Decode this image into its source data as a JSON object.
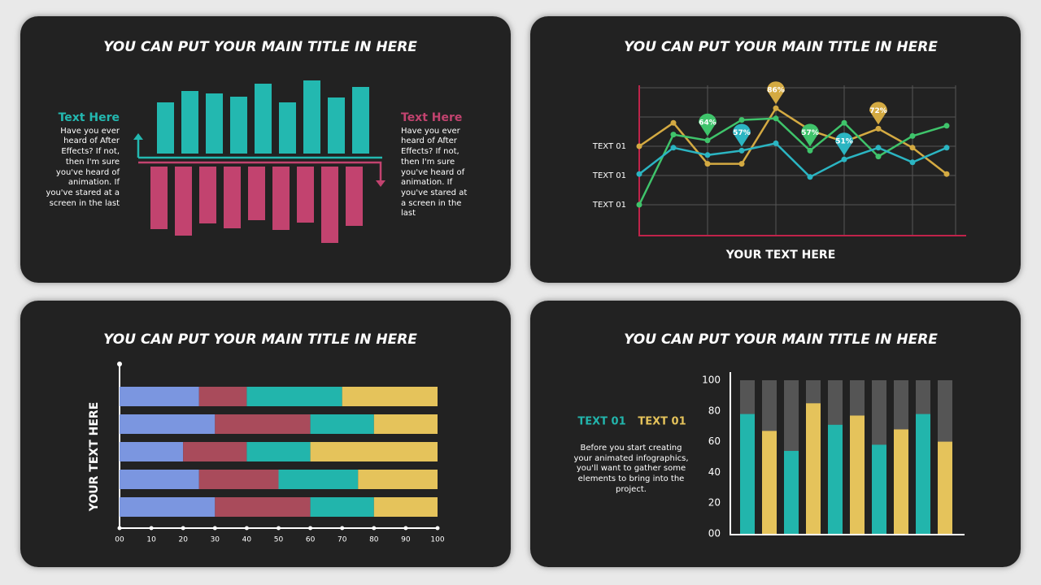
{
  "chart_data": [
    {
      "type": "diverging-bar",
      "title": "YOU CAN PUT YOUR MAIN TITLE IN HERE",
      "ylim": [
        0,
        100
      ],
      "series": [
        {
          "color": "#23b8b0",
          "values": [
            63,
            77,
            74,
            70,
            86,
            63,
            90,
            69,
            82
          ]
        },
        {
          "color": "#c2436f",
          "values": [
            77,
            85,
            70,
            76,
            66,
            78,
            69,
            94,
            73
          ]
        }
      ],
      "annotations": [
        {
          "title": "Text Here",
          "text": "Have you ever heard of After Effects? If not, then I'm sure you've heard of animation. If you've stared at a screen in the last",
          "color": "#23b8b0"
        },
        {
          "title": "Text Here",
          "text": "Have you ever heard of After Effects? If not, then I'm sure you've heard of animation. If you've stared at a screen in the last",
          "color": "#c2436f"
        }
      ]
    },
    {
      "type": "line",
      "title": "YOU CAN PUT YOUR MAIN TITLE IN HERE",
      "xlabel": "YOUR TEXT HERE",
      "categories": [
        null,
        null,
        null,
        null,
        null,
        null,
        null,
        null,
        null,
        null
      ],
      "ylim": [
        0,
        100
      ],
      "yticks": [
        {
          "value": 20,
          "label": "TEXT 01"
        },
        {
          "value": 40,
          "label": "TEXT 01"
        },
        {
          "value": 60,
          "label": "TEXT 01"
        },
        {
          "value": 80,
          "label": null
        },
        {
          "value": 100,
          "label": null
        }
      ],
      "grid": true,
      "series": [
        {
          "color": "#d4aa42",
          "values": [
            60,
            76,
            48,
            48,
            86,
            71,
            63,
            72,
            59,
            41
          ],
          "value_labels": [
            null,
            null,
            null,
            null,
            "86%",
            null,
            null,
            "72%",
            null,
            null
          ]
        },
        {
          "color": "#3fc46b",
          "values": [
            20,
            68,
            64,
            78,
            79,
            57,
            76,
            53,
            67,
            74
          ],
          "value_labels": [
            null,
            null,
            "64%",
            null,
            null,
            "57%",
            null,
            null,
            null,
            null
          ]
        },
        {
          "color": "#2bb5c2",
          "values": [
            41,
            59,
            54,
            57,
            62,
            39,
            51,
            59,
            49,
            59
          ],
          "value_labels": [
            null,
            null,
            null,
            "57%",
            null,
            null,
            "51%",
            null,
            null,
            null
          ]
        }
      ]
    },
    {
      "type": "stacked-barh",
      "title": "YOU CAN PUT YOUR MAIN TITLE IN HERE",
      "ylabel": "YOUR TEXT HERE",
      "categories": [
        null,
        null,
        null,
        null,
        null
      ],
      "xlim": [
        0,
        100
      ],
      "xticks": [
        {
          "value": 0,
          "label": "00"
        },
        10,
        20,
        30,
        40,
        50,
        60,
        70,
        80,
        90,
        100
      ],
      "series": [
        {
          "color": "#7b96e0",
          "values": [
            25,
            30,
            20,
            25,
            30
          ]
        },
        {
          "color": "#a94b5b",
          "values": [
            15,
            30,
            20,
            25,
            30
          ]
        },
        {
          "color": "#22b5ac",
          "values": [
            30,
            20,
            20,
            25,
            20
          ]
        },
        {
          "color": "#e5c35b",
          "values": [
            30,
            20,
            40,
            25,
            20
          ]
        }
      ]
    },
    {
      "type": "bar",
      "title": "YOU CAN PUT YOUR MAIN TITLE IN HERE",
      "categories": [
        null,
        null,
        null,
        null,
        null,
        null,
        null,
        null,
        null,
        null
      ],
      "ylim": [
        0,
        100
      ],
      "yticks": [
        {
          "value": 0,
          "label": "00"
        },
        20,
        40,
        60,
        80,
        100
      ],
      "series": [
        {
          "name": "TEXT 01",
          "color": "#22b5ac",
          "values": [
            78,
            null,
            54,
            null,
            71,
            null,
            58,
            null,
            78,
            null
          ]
        },
        {
          "name": "TEXT 01",
          "color": "#e5c35b",
          "values": [
            null,
            67,
            null,
            85,
            null,
            77,
            null,
            68,
            null,
            60
          ]
        }
      ],
      "note": "Before you start creating your animated infographics, you'll want to gather some elements to bring into the project."
    }
  ]
}
